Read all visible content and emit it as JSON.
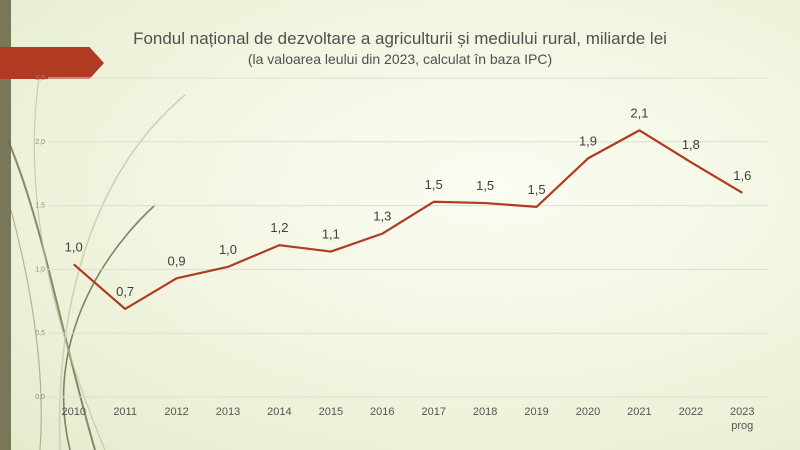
{
  "chart_data": {
    "type": "line",
    "title": "Fondul național de dezvoltare a agriculturii și mediului rural, miliarde lei",
    "subtitle": "(la valoarea leului din 2023, calculat în baza IPC)",
    "xlabel": "",
    "ylabel": "",
    "categories": [
      "2010",
      "2011",
      "2012",
      "2013",
      "2014",
      "2015",
      "2016",
      "2017",
      "2018",
      "2019",
      "2020",
      "2021",
      "2022",
      "2023"
    ],
    "category_sublabels": [
      "",
      "",
      "",
      "",
      "",
      "",
      "",
      "",
      "",
      "",
      "",
      "",
      "",
      "prog"
    ],
    "values": [
      1.04,
      0.69,
      0.93,
      1.02,
      1.19,
      1.14,
      1.28,
      1.53,
      1.52,
      1.49,
      1.87,
      2.09,
      1.84,
      1.6
    ],
    "data_labels": [
      "1,0",
      "0,7",
      "0,9",
      "1,0",
      "1,2",
      "1,1",
      "1,3",
      "1,5",
      "1,5",
      "1,5",
      "1,9",
      "2,1",
      "1,8",
      "1,6"
    ],
    "ylim": [
      0,
      2.5
    ],
    "yticks": [
      0,
      0.5,
      1,
      1.5,
      2,
      2.5
    ],
    "ytick_labels": [
      "0,0",
      "0,5",
      "1,0",
      "1,5",
      "2,0",
      "2,5"
    ],
    "grid": true,
    "line_color": "#b03a22",
    "grid_color": "#dcdfd0"
  }
}
